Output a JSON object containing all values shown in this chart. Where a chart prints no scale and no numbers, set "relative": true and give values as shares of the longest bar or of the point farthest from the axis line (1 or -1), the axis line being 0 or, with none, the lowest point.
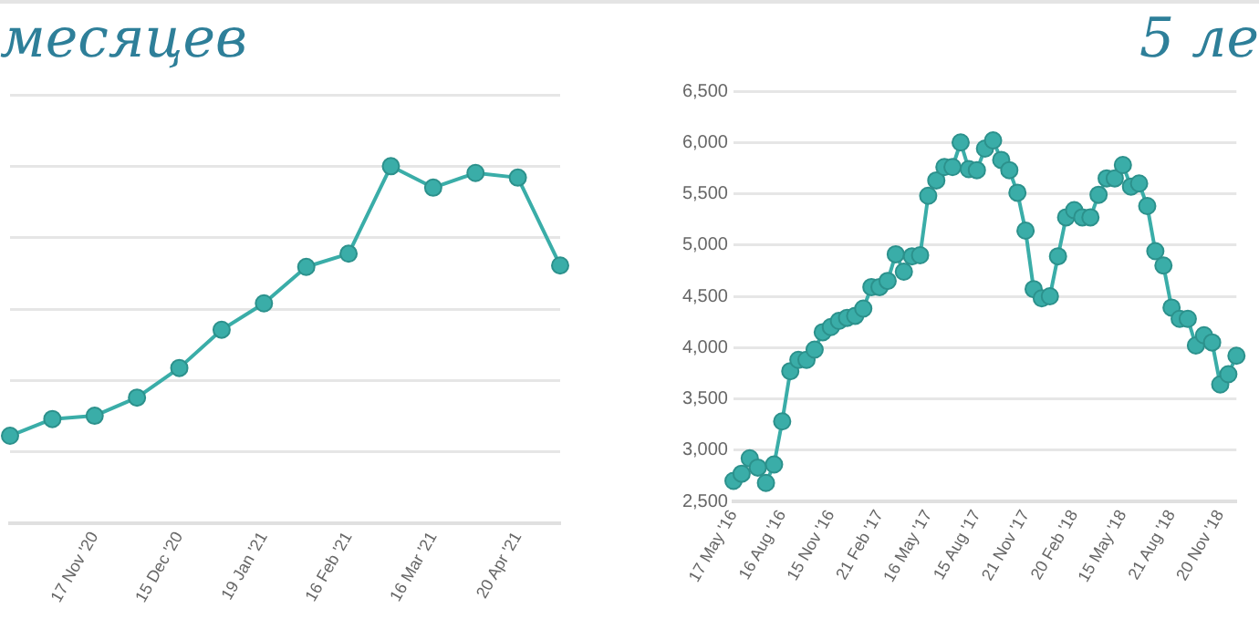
{
  "chart_data": [
    {
      "type": "line",
      "title": "месяцев",
      "relative": true,
      "grid": "y",
      "marker": "circle",
      "categories": [
        null,
        null,
        "17 Nov '20",
        null,
        "15 Dec '20",
        null,
        "19 Jan '21",
        null,
        "16 Feb '21",
        null,
        "16 Mar '21",
        null,
        "20 Apr '21",
        null
      ],
      "series": [
        {
          "color": "#3aada8",
          "values": [
            0.245,
            0.292,
            0.301,
            0.352,
            0.435,
            0.542,
            0.616,
            0.718,
            0.755,
            1,
            0.94,
            0.981,
            0.968,
            0.722
          ]
        }
      ]
    },
    {
      "type": "line",
      "title": "5 ле",
      "grid": "y",
      "marker": "circle",
      "ylim": [
        2500,
        6500
      ],
      "yticks": [
        {
          "value": 2500,
          "label": "2,500"
        },
        {
          "value": 3000,
          "label": "3,000"
        },
        {
          "value": 3500,
          "label": "3,500"
        },
        {
          "value": 4000,
          "label": "4,000"
        },
        {
          "value": 4500,
          "label": "4,500"
        },
        {
          "value": 5000,
          "label": "5,000"
        },
        {
          "value": 5500,
          "label": "5,500"
        },
        {
          "value": 6000,
          "label": "6,000"
        },
        {
          "value": 6500,
          "label": "6,500"
        }
      ],
      "categories": [
        "17 May '16",
        null,
        null,
        null,
        null,
        null,
        "16 Aug '16",
        null,
        null,
        null,
        null,
        null,
        "15 Nov '16",
        null,
        null,
        null,
        null,
        null,
        "21 Feb '17",
        null,
        null,
        null,
        null,
        null,
        "16 May '17",
        null,
        null,
        null,
        null,
        null,
        "15 Aug '17",
        null,
        null,
        null,
        null,
        null,
        "21 Nov '17",
        null,
        null,
        null,
        null,
        null,
        "20 Feb '18",
        null,
        null,
        null,
        null,
        null,
        "15 May '18",
        null,
        null,
        null,
        null,
        null,
        "21 Aug '18",
        null,
        null,
        null,
        null,
        null,
        "20 Nov '18",
        null,
        null
      ],
      "series": [
        {
          "color": "#3aada8",
          "values": [
            2700,
            2770,
            2920,
            2830,
            2680,
            2860,
            3280,
            3770,
            3880,
            3880,
            3980,
            4150,
            4200,
            4260,
            4290,
            4310,
            4380,
            4590,
            4590,
            4650,
            4910,
            4740,
            4890,
            4900,
            5480,
            5630,
            5760,
            5760,
            6000,
            5740,
            5730,
            5940,
            6020,
            5830,
            5730,
            5510,
            5140,
            4570,
            4480,
            4500,
            4890,
            5270,
            5340,
            5270,
            5270,
            5490,
            5650,
            5650,
            5780,
            5570,
            5600,
            5380,
            4940,
            4800,
            4390,
            4280,
            4280,
            4020,
            4120,
            4050,
            3640,
            3740,
            3920
          ]
        }
      ]
    }
  ]
}
